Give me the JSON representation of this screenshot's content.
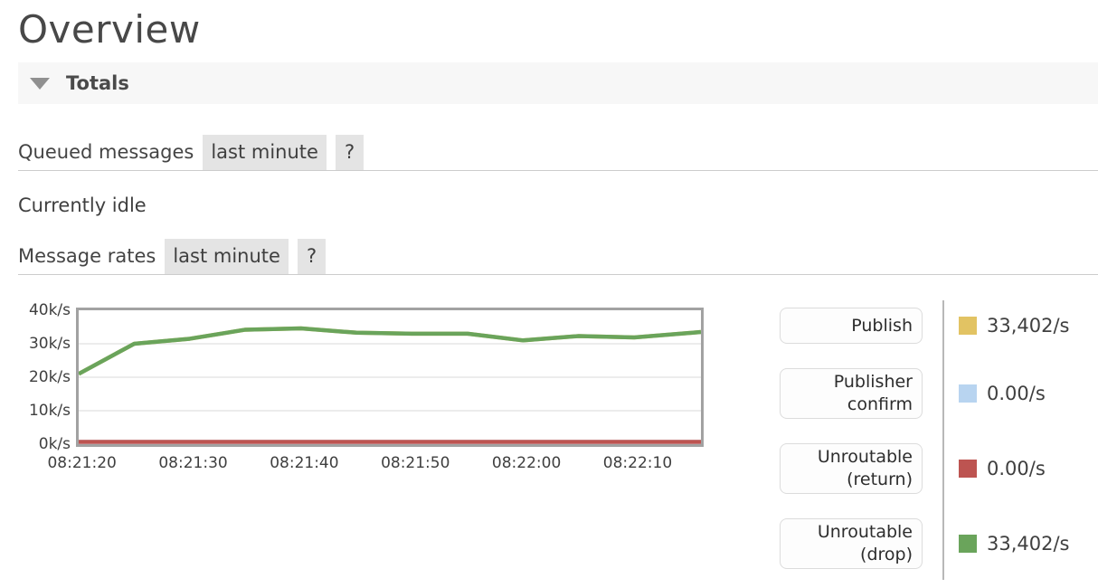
{
  "page": {
    "title": "Overview"
  },
  "totals": {
    "label": "Totals",
    "collapse_icon": "triangle-down"
  },
  "queued_messages": {
    "title": "Queued messages",
    "timescale": "last minute",
    "help": "?",
    "status": "Currently idle"
  },
  "message_rates": {
    "title": "Message rates",
    "timescale": "last minute",
    "help": "?"
  },
  "chart_data": {
    "type": "line",
    "title": "Message rates",
    "x_tick_labels": [
      "08:21:20",
      "08:21:30",
      "08:21:40",
      "08:21:50",
      "08:22:00",
      "08:22:10"
    ],
    "x_tick_seconds": [
      0.3,
      10.3,
      20.3,
      30.3,
      40.3,
      50.3
    ],
    "x_seconds": [
      0,
      5,
      10,
      15,
      20,
      25,
      30,
      35,
      40,
      45,
      50,
      56
    ],
    "xlim": [
      0,
      56
    ],
    "ylim": [
      0,
      40000
    ],
    "y_tick_labels": [
      "40k/s",
      "30k/s",
      "20k/s",
      "10k/s",
      "0k/s"
    ],
    "y_tick_values": [
      40000,
      30000,
      20000,
      10000,
      0
    ],
    "grid": true,
    "legend_position": "right",
    "series": [
      {
        "name": "Publish",
        "color": "#e2c363",
        "values": [
          21000,
          30000,
          31500,
          34200,
          34600,
          33300,
          33000,
          33000,
          31000,
          32300,
          31900,
          33500
        ]
      },
      {
        "name": "Publisher confirm",
        "color": "#b8d4f0",
        "values": [
          0,
          0,
          0,
          0,
          0,
          0,
          0,
          0,
          0,
          0,
          0,
          0
        ]
      },
      {
        "name": "Unroutable (return)",
        "color": "#bd5451",
        "values": [
          0,
          0,
          0,
          0,
          0,
          0,
          0,
          0,
          0,
          0,
          0,
          0
        ]
      },
      {
        "name": "Unroutable (drop)",
        "color": "#6aa45b",
        "values": [
          21000,
          30000,
          31500,
          34200,
          34600,
          33300,
          33000,
          33000,
          31000,
          32300,
          31900,
          33500
        ]
      }
    ]
  },
  "legend": {
    "items": [
      {
        "label": "Publish",
        "color": "#e2c363",
        "value": "33,402/s"
      },
      {
        "label": "Publisher confirm",
        "color": "#b8d4f0",
        "value": "0.00/s"
      },
      {
        "label": "Unroutable (return)",
        "color": "#bd5451",
        "value": "0.00/s"
      },
      {
        "label": "Unroutable (drop)",
        "color": "#6aa45b",
        "value": "33,402/s"
      }
    ]
  }
}
